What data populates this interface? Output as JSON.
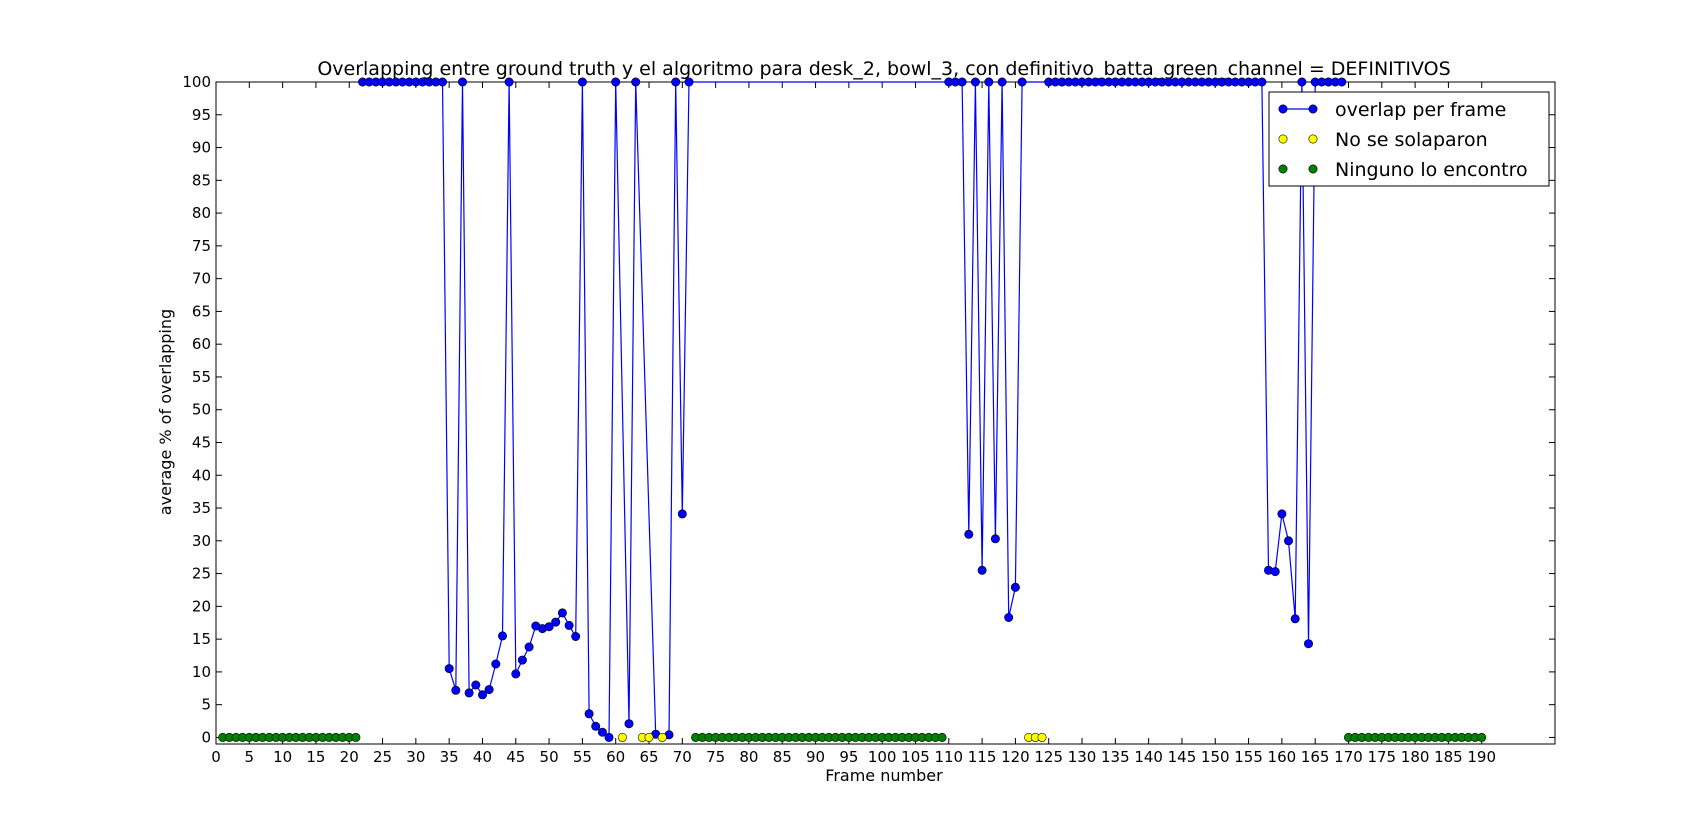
{
  "chart_data": {
    "type": "line",
    "title": "Overlapping entre ground truth y el algoritmo para desk_2, bowl_3, con definitivo_batta_green_channel = DEFINITIVOS",
    "xlabel": "Frame number",
    "ylabel": "average % of overlapping",
    "xlim": [
      0,
      201
    ],
    "ylim": [
      -1,
      100
    ],
    "xticks": [
      0,
      5,
      10,
      15,
      20,
      25,
      30,
      35,
      40,
      45,
      50,
      55,
      60,
      65,
      70,
      75,
      80,
      85,
      90,
      95,
      100,
      105,
      110,
      115,
      120,
      125,
      130,
      135,
      140,
      145,
      150,
      155,
      160,
      165,
      170,
      175,
      180,
      185,
      190
    ],
    "yticks": [
      0,
      5,
      10,
      15,
      20,
      25,
      30,
      35,
      40,
      45,
      50,
      55,
      60,
      65,
      70,
      75,
      80,
      85,
      90,
      95,
      100
    ],
    "legend_position": "top-right",
    "grid": false,
    "colors": {
      "overlap": "#0000ff",
      "no_overlap": "#ffff00",
      "none_found": "#008000"
    },
    "series": [
      {
        "name": "overlap per frame",
        "style": "line+marker",
        "x": [
          22,
          23,
          24,
          25,
          26,
          27,
          28,
          29,
          30,
          31,
          32,
          33,
          34,
          35,
          36,
          37,
          38,
          39,
          40,
          41,
          42,
          43,
          44,
          45,
          46,
          47,
          48,
          49,
          50,
          51,
          52,
          53,
          54,
          55,
          56,
          57,
          58,
          59,
          60,
          62,
          63,
          66,
          68,
          69,
          70,
          71,
          110,
          111,
          112,
          113,
          114,
          115,
          116,
          117,
          118,
          119,
          120,
          121,
          125,
          126,
          127,
          128,
          129,
          130,
          131,
          132,
          133,
          134,
          135,
          136,
          137,
          138,
          139,
          140,
          141,
          142,
          143,
          144,
          145,
          146,
          147,
          148,
          149,
          150,
          151,
          152,
          153,
          154,
          155,
          156,
          157,
          158,
          159,
          160,
          161,
          162,
          163,
          164,
          165,
          166,
          167,
          168,
          169
        ],
        "y": [
          100,
          100,
          100,
          100,
          100,
          100,
          100,
          100,
          100,
          100,
          100,
          100,
          100,
          10.5,
          7.2,
          100,
          6.8,
          8,
          6.5,
          7.3,
          11.2,
          15.5,
          100,
          9.7,
          11.8,
          13.8,
          17,
          16.6,
          16.9,
          17.6,
          19,
          17.1,
          15.4,
          100,
          3.6,
          1.7,
          0.8,
          0,
          100,
          2.1,
          100,
          0.5,
          0.4,
          100,
          34.1,
          100,
          100,
          100,
          100,
          31,
          100,
          25.5,
          100,
          30.3,
          100,
          18.3,
          22.9,
          100,
          100,
          100,
          100,
          100,
          100,
          100,
          100,
          100,
          100,
          100,
          100,
          100,
          100,
          100,
          100,
          100,
          100,
          100,
          100,
          100,
          100,
          100,
          100,
          100,
          100,
          100,
          100,
          100,
          100,
          100,
          100,
          100,
          100,
          25.5,
          25.3,
          34.1,
          30,
          18.1,
          100,
          14.3,
          100,
          100,
          100,
          100,
          100
        ]
      },
      {
        "name": "No se solaparon",
        "style": "marker",
        "x": [
          61,
          64,
          65,
          67,
          122,
          123,
          124
        ],
        "y": [
          0,
          0,
          0,
          0,
          0,
          0,
          0
        ]
      },
      {
        "name": "Ninguno lo encontro",
        "style": "marker",
        "x": [
          1,
          2,
          3,
          4,
          5,
          6,
          7,
          8,
          9,
          10,
          11,
          12,
          13,
          14,
          15,
          16,
          17,
          18,
          19,
          20,
          21,
          72,
          73,
          74,
          75,
          76,
          77,
          78,
          79,
          80,
          81,
          82,
          83,
          84,
          85,
          86,
          87,
          88,
          89,
          90,
          91,
          92,
          93,
          94,
          95,
          96,
          97,
          98,
          99,
          100,
          101,
          102,
          103,
          104,
          105,
          106,
          107,
          108,
          109,
          170,
          171,
          172,
          173,
          174,
          175,
          176,
          177,
          178,
          179,
          180,
          181,
          182,
          183,
          184,
          185,
          186,
          187,
          188,
          189,
          190
        ],
        "y": [
          0,
          0,
          0,
          0,
          0,
          0,
          0,
          0,
          0,
          0,
          0,
          0,
          0,
          0,
          0,
          0,
          0,
          0,
          0,
          0,
          0,
          0,
          0,
          0,
          0,
          0,
          0,
          0,
          0,
          0,
          0,
          0,
          0,
          0,
          0,
          0,
          0,
          0,
          0,
          0,
          0,
          0,
          0,
          0,
          0,
          0,
          0,
          0,
          0,
          0,
          0,
          0,
          0,
          0,
          0,
          0,
          0,
          0,
          0,
          0,
          0,
          0,
          0,
          0,
          0,
          0,
          0,
          0,
          0,
          0,
          0,
          0,
          0,
          0,
          0,
          0,
          0,
          0,
          0,
          0
        ]
      }
    ]
  }
}
